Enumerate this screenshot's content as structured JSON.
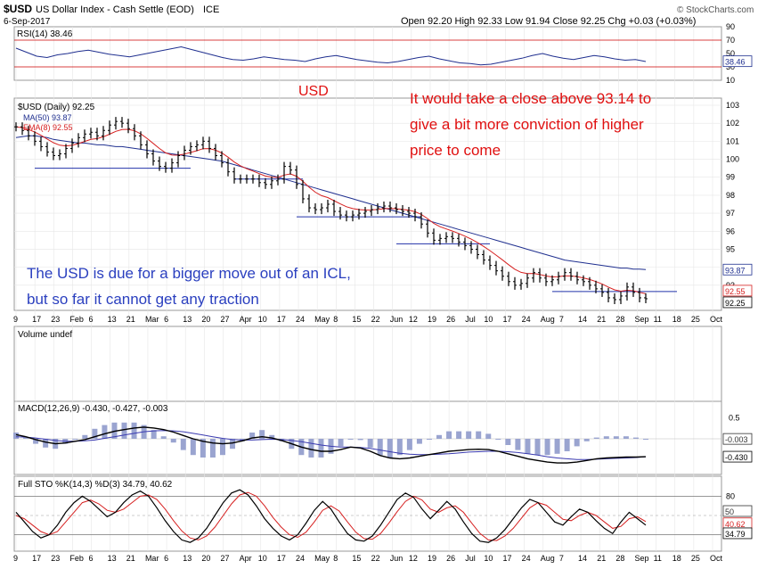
{
  "header": {
    "symbol": "$USD",
    "name": "US Dollar Index - Cash Settle (EOD)",
    "exchange": "ICE",
    "date": "6-Sep-2017",
    "ohlc": "Open 92.20  High 92.33  Low 91.94  Close 92.25  Chg +0.03 (+0.03%)",
    "watermark": "© StockCharts.com"
  },
  "chart_data": [
    {
      "type": "line",
      "panel": "rsi",
      "legend": "RSI(14) 38.46",
      "ylim": [
        10,
        90
      ],
      "yticks": [
        90,
        70,
        50,
        30,
        10
      ],
      "last_value_tag": "38.46",
      "values": [
        58,
        52,
        46,
        44,
        48,
        50,
        53,
        55,
        52,
        49,
        47,
        45,
        48,
        51,
        54,
        57,
        60,
        56,
        52,
        48,
        44,
        41,
        40,
        42,
        45,
        43,
        41,
        40,
        38,
        42,
        45,
        47,
        44,
        41,
        39,
        37,
        36,
        38,
        41,
        44,
        46,
        42,
        39,
        36,
        35,
        33,
        34,
        37,
        40,
        43,
        47,
        50,
        46,
        43,
        41,
        44,
        47,
        45,
        42,
        40,
        41,
        38
      ]
    },
    {
      "type": "line",
      "panel": "price",
      "legend": [
        "$USD (Daily) 92.25",
        "MA(50) 93.87",
        "EMA(8) 92.55"
      ],
      "ylim": [
        92,
        103
      ],
      "yticks": [
        103,
        102,
        101,
        100,
        99,
        98,
        97,
        96,
        95,
        94,
        93
      ],
      "price_tags": [
        "93.87",
        "92.55",
        "92.25"
      ],
      "x_labels": [
        "9",
        "17",
        "23",
        "Feb",
        "6",
        "13",
        "21",
        "Mar",
        "6",
        "13",
        "20",
        "27",
        "Apr",
        "10",
        "17",
        "24",
        "May",
        "8",
        "15",
        "22",
        "Jun",
        "12",
        "19",
        "26",
        "Jul",
        "10",
        "17",
        "24",
        "Aug",
        "7",
        "14",
        "21",
        "28",
        "Sep",
        "11",
        "18",
        "25",
        "Oct"
      ],
      "close": [
        101.8,
        101.6,
        101.3,
        101.0,
        100.7,
        100.4,
        100.2,
        100.3,
        100.6,
        100.9,
        101.2,
        101.4,
        101.5,
        101.3,
        101.6,
        101.9,
        102.1,
        102.0,
        101.7,
        101.3,
        100.8,
        100.3,
        99.9,
        99.6,
        99.5,
        99.8,
        100.2,
        100.5,
        100.7,
        100.8,
        101.0,
        100.6,
        100.2,
        99.8,
        99.3,
        98.9,
        98.9,
        98.9,
        98.9,
        98.7,
        98.6,
        98.8,
        98.9,
        99.6,
        99.4,
        98.6,
        97.8,
        97.3,
        97.2,
        97.3,
        97.5,
        97.1,
        96.9,
        96.8,
        96.9,
        97.0,
        97.1,
        97.2,
        97.3,
        97.4,
        97.3,
        97.2,
        97.1,
        97.0,
        96.8,
        96.4,
        95.9,
        95.5,
        95.6,
        95.7,
        95.6,
        95.4,
        95.2,
        95.0,
        94.7,
        94.4,
        94.1,
        93.8,
        93.5,
        93.2,
        93.0,
        93.1,
        93.4,
        93.7,
        93.4,
        93.2,
        93.3,
        93.5,
        93.7,
        93.5,
        93.3,
        93.2,
        93.0,
        92.8,
        92.6,
        92.3,
        92.2,
        92.4,
        92.9,
        92.6,
        92.3,
        92.25
      ],
      "ma50": [
        101.2,
        101.25,
        101.3,
        101.3,
        101.25,
        101.2,
        101.1,
        101.05,
        101.0,
        100.95,
        100.9,
        100.9,
        100.85,
        100.8,
        100.8,
        100.75,
        100.7,
        100.7,
        100.65,
        100.6,
        100.55,
        100.5,
        100.45,
        100.4,
        100.35,
        100.3,
        100.25,
        100.2,
        100.15,
        100.1,
        100.05,
        100.0,
        99.95,
        99.9,
        99.8,
        99.7,
        99.6,
        99.5,
        99.4,
        99.3,
        99.2,
        99.1,
        99.0,
        98.9,
        98.8,
        98.7,
        98.6,
        98.5,
        98.4,
        98.3,
        98.2,
        98.1,
        98.0,
        97.9,
        97.8,
        97.7,
        97.6,
        97.5,
        97.4,
        97.3,
        97.2,
        97.1,
        97.0,
        96.9,
        96.8,
        96.7,
        96.6,
        96.5,
        96.4,
        96.3,
        96.2,
        96.1,
        96.0,
        95.9,
        95.8,
        95.7,
        95.6,
        95.5,
        95.4,
        95.3,
        95.2,
        95.1,
        95.0,
        94.9,
        94.8,
        94.7,
        94.6,
        94.5,
        94.4,
        94.35,
        94.3,
        94.25,
        94.2,
        94.15,
        94.1,
        94.05,
        94.0,
        93.95,
        93.95,
        93.9,
        93.9,
        93.87
      ],
      "support_lines": [
        {
          "from_index": 3,
          "to_index": 28,
          "value": 99.5
        },
        {
          "from_index": 35,
          "to_index": 46,
          "value": 98.9
        },
        {
          "from_index": 45,
          "to_index": 65,
          "value": 96.8
        },
        {
          "from_index": 61,
          "to_index": 76,
          "value": 95.3
        },
        {
          "from_index": 86,
          "to_index": 110,
          "value": 92.65
        }
      ]
    },
    {
      "type": "bar",
      "panel": "volume",
      "legend": "Volume undef",
      "values": []
    },
    {
      "type": "line",
      "panel": "macd",
      "legend": "MACD(12,26,9) -0.430, -0.427, -0.003",
      "yticks": [
        0.5,
        -0.003,
        -0.43
      ],
      "value_tags": [
        "-0.003",
        "-0.430"
      ],
      "macd": [
        0.1,
        0.05,
        -0.02,
        -0.08,
        -0.12,
        -0.1,
        -0.06,
        -0.02,
        0.05,
        0.12,
        0.18,
        0.22,
        0.26,
        0.28,
        0.26,
        0.22,
        0.16,
        0.08,
        0.0,
        -0.06,
        -0.1,
        -0.12,
        -0.1,
        -0.05,
        0.02,
        0.05,
        0.02,
        -0.04,
        -0.12,
        -0.2,
        -0.26,
        -0.3,
        -0.3,
        -0.26,
        -0.2,
        -0.22,
        -0.3,
        -0.4,
        -0.46,
        -0.48,
        -0.46,
        -0.42,
        -0.38,
        -0.34,
        -0.3,
        -0.28,
        -0.26,
        -0.25,
        -0.26,
        -0.3,
        -0.36,
        -0.42,
        -0.48,
        -0.52,
        -0.56,
        -0.58,
        -0.58,
        -0.56,
        -0.52,
        -0.48,
        -0.46,
        -0.45,
        -0.44,
        -0.44,
        -0.43
      ],
      "signal": [
        0.05,
        0.04,
        0.02,
        -0.01,
        -0.04,
        -0.06,
        -0.06,
        -0.05,
        -0.03,
        0.01,
        0.05,
        0.09,
        0.13,
        0.17,
        0.19,
        0.2,
        0.19,
        0.17,
        0.13,
        0.09,
        0.05,
        0.01,
        -0.02,
        -0.03,
        -0.03,
        -0.02,
        -0.01,
        -0.02,
        -0.04,
        -0.07,
        -0.11,
        -0.15,
        -0.18,
        -0.2,
        -0.2,
        -0.21,
        -0.23,
        -0.27,
        -0.31,
        -0.35,
        -0.37,
        -0.38,
        -0.38,
        -0.37,
        -0.36,
        -0.34,
        -0.32,
        -0.31,
        -0.3,
        -0.3,
        -0.31,
        -0.33,
        -0.36,
        -0.39,
        -0.43,
        -0.46,
        -0.48,
        -0.5,
        -0.5,
        -0.49,
        -0.48,
        -0.47,
        -0.46,
        -0.45,
        -0.43
      ]
    },
    {
      "type": "line",
      "panel": "stochastic",
      "legend": "Full STO %K(14,3) %D(3) 34.79, 40.62",
      "ylim": [
        0,
        100
      ],
      "yticks": [
        80,
        50,
        20
      ],
      "value_tags": [
        "50",
        "40.62",
        "34.79"
      ],
      "k": [
        55,
        40,
        25,
        15,
        20,
        35,
        55,
        70,
        80,
        72,
        60,
        48,
        55,
        70,
        82,
        88,
        80,
        62,
        42,
        25,
        12,
        8,
        15,
        30,
        50,
        70,
        85,
        90,
        82,
        65,
        45,
        30,
        18,
        12,
        20,
        38,
        58,
        72,
        60,
        40,
        22,
        12,
        10,
        18,
        35,
        55,
        75,
        85,
        78,
        60,
        45,
        58,
        72,
        60,
        40,
        22,
        10,
        8,
        15,
        28,
        45,
        62,
        75,
        70,
        55,
        40,
        35,
        48,
        60,
        55,
        42,
        30,
        22,
        40,
        55,
        45,
        35
      ],
      "d": [
        50,
        45,
        35,
        25,
        20,
        25,
        40,
        55,
        70,
        74,
        68,
        58,
        55,
        60,
        70,
        80,
        82,
        75,
        60,
        42,
        26,
        15,
        12,
        18,
        32,
        50,
        68,
        82,
        86,
        80,
        65,
        47,
        32,
        20,
        16,
        24,
        40,
        58,
        65,
        57,
        40,
        24,
        14,
        13,
        22,
        38,
        56,
        72,
        80,
        74,
        60,
        55,
        62,
        65,
        55,
        38,
        22,
        12,
        11,
        18,
        30,
        46,
        62,
        70,
        66,
        55,
        44,
        42,
        50,
        55,
        50,
        40,
        30,
        33,
        45,
        48,
        40.62
      ]
    }
  ],
  "annotations": {
    "usd_label": "USD",
    "conviction_line1": "It would take a close above 93.14 to",
    "conviction_line2": "give a bit more conviction of higher",
    "conviction_line3": "price to come",
    "icl_line1": "The USD is due for a bigger move out of an ICL,",
    "icl_line2": "but so far it cannot get any traction"
  },
  "colors": {
    "price": "#000000",
    "ma50": "#1f2f8f",
    "ema8": "#d62020",
    "support": "#2233aa",
    "annotation_red": "#e01010",
    "annotation_blue": "#2a3fbf",
    "grid": "#e6e6e6",
    "hist": "#9aa4d0"
  }
}
